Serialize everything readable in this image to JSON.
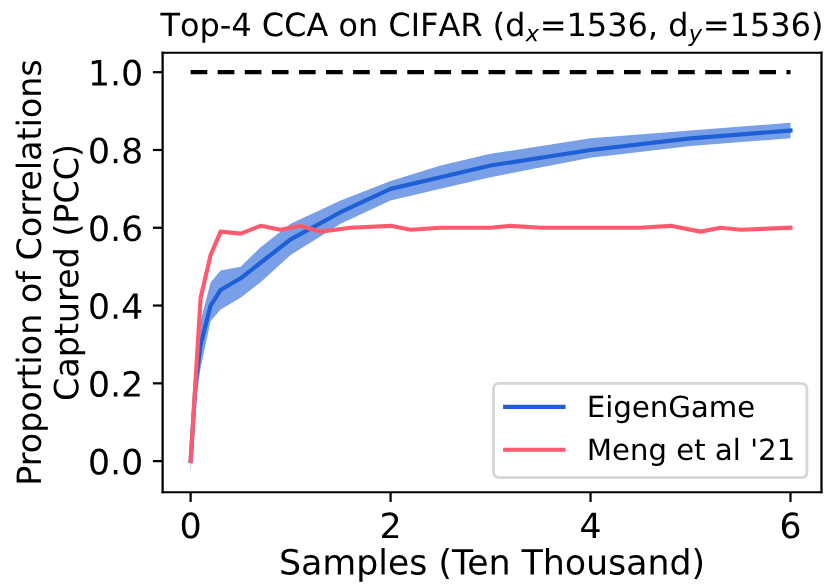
{
  "chart_data": {
    "type": "line",
    "title": "Top-4 CCA on CIFAR (d$_{x}$=1536, d$_{y}$=1536)",
    "xlabel": "Samples (Ten Thousand)",
    "ylabel": "Proportion of Correlations\nCaptured (PCC)",
    "xlim": [
      -0.28,
      6.31
    ],
    "ylim": [
      -0.08,
      1.05
    ],
    "xticks": [
      0,
      2,
      4,
      6
    ],
    "yticks": [
      {
        "value": 0,
        "label": "0.0"
      },
      {
        "value": 0.2,
        "label": "0.2"
      },
      {
        "value": 0.4,
        "label": "0.4"
      },
      {
        "value": 0.6,
        "label": "0.6"
      },
      {
        "value": 0.8,
        "label": "0.8"
      },
      {
        "value": 1.0,
        "label": "1.0"
      }
    ],
    "grid": false,
    "legend": "bottom right",
    "marker": "none",
    "series": [
      {
        "color": "#000000",
        "line_style": "dashed",
        "x": [
          0,
          6
        ],
        "values": [
          1.0,
          1.0
        ]
      },
      {
        "name": "EigenGame",
        "color": "#1f5fd6",
        "x": [
          0,
          0.05,
          0.1,
          0.2,
          0.3,
          0.5,
          0.7,
          1.0,
          1.5,
          2.0,
          2.5,
          3.0,
          4.0,
          5.0,
          6.0
        ],
        "values": [
          0.0,
          0.2,
          0.3,
          0.4,
          0.44,
          0.47,
          0.51,
          0.57,
          0.64,
          0.7,
          0.73,
          0.76,
          0.8,
          0.83,
          0.85
        ],
        "lower": [
          -0.03,
          0.15,
          0.24,
          0.36,
          0.39,
          0.42,
          0.46,
          0.53,
          0.61,
          0.67,
          0.7,
          0.73,
          0.78,
          0.81,
          0.83
        ],
        "upper": [
          0.03,
          0.26,
          0.36,
          0.46,
          0.49,
          0.5,
          0.55,
          0.61,
          0.67,
          0.72,
          0.76,
          0.79,
          0.83,
          0.85,
          0.87
        ]
      },
      {
        "name": "Meng et al '21",
        "color": "#ff5a6e",
        "x": [
          0,
          0.1,
          0.2,
          0.3,
          0.5,
          0.7,
          0.9,
          1.1,
          1.3,
          1.6,
          2.0,
          2.2,
          2.5,
          3.0,
          3.2,
          3.5,
          4.0,
          4.5,
          4.8,
          5.1,
          5.3,
          5.5,
          6.0
        ],
        "values": [
          0.0,
          0.42,
          0.53,
          0.59,
          0.585,
          0.605,
          0.595,
          0.605,
          0.59,
          0.6,
          0.605,
          0.595,
          0.6,
          0.6,
          0.605,
          0.6,
          0.6,
          0.6,
          0.605,
          0.59,
          0.6,
          0.595,
          0.6
        ]
      }
    ]
  }
}
